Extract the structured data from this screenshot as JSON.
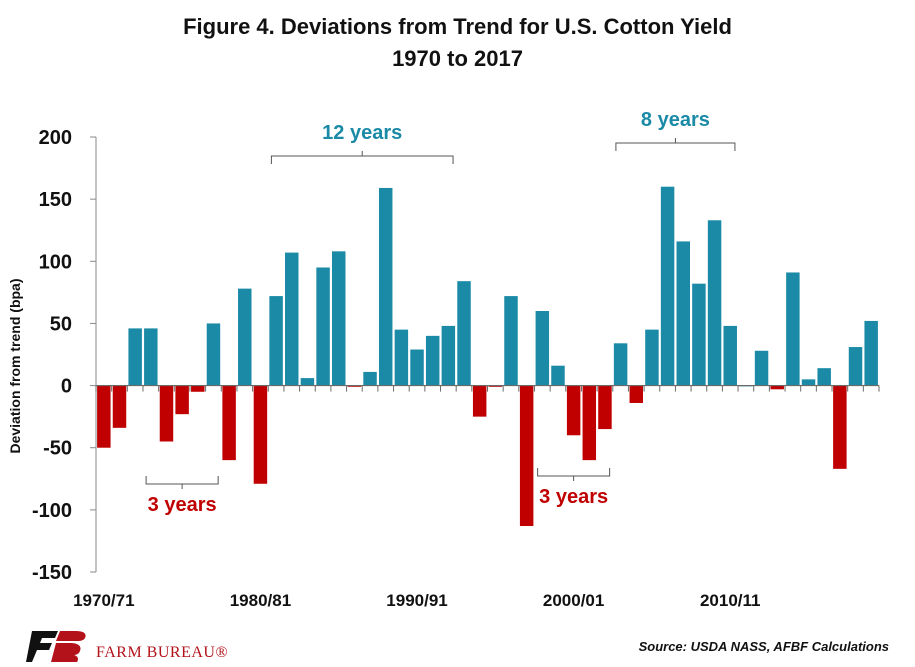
{
  "title_line1": "Figure 4. Deviations from Trend for U.S. Cotton Yield",
  "title_line2": "1970 to 2017",
  "ylabel": "Deviation from trend (bpa)",
  "source": "Source: USDA NASS, AFBF Calculations",
  "logo_text": "FARM BUREAU®",
  "colors": {
    "positive": "#1a8aa6",
    "negative": "#c00000",
    "annot_pos": "#1a8aa6",
    "annot_neg": "#c00000"
  },
  "chart_data": {
    "type": "bar",
    "title": "Figure 4. Deviations from Trend for U.S. Cotton Yield 1970 to 2017",
    "ylabel": "Deviation from trend (bpa)",
    "ylim": [
      -150,
      200
    ],
    "yticks": [
      -150,
      -100,
      -50,
      0,
      50,
      100,
      150,
      200
    ],
    "xtick_labels": [
      {
        "index": 0,
        "label": "1970/71"
      },
      {
        "index": 10,
        "label": "1980/81"
      },
      {
        "index": 20,
        "label": "1990/91"
      },
      {
        "index": 30,
        "label": "2000/01"
      },
      {
        "index": 40,
        "label": "2010/11"
      }
    ],
    "values": [
      -50,
      -34,
      46,
      46,
      -45,
      -23,
      -5,
      50,
      -60,
      78,
      -79,
      72,
      107,
      6,
      95,
      108,
      -1,
      11,
      159,
      45,
      29,
      40,
      48,
      84,
      -25,
      -1,
      72,
      -113,
      60,
      16,
      -40,
      -60,
      -35,
      34,
      -14,
      45,
      160,
      116,
      82,
      133,
      48,
      0,
      28,
      -3,
      91,
      5,
      14,
      -67,
      31,
      52
    ],
    "annotations": [
      {
        "text": "3 years",
        "start": 3,
        "end": 7,
        "type": "neg"
      },
      {
        "text": "12 years",
        "start": 11,
        "end": 22,
        "type": "pos"
      },
      {
        "text": "3 years",
        "start": 28,
        "end": 32,
        "type": "neg"
      },
      {
        "text": "8 years",
        "start": 33,
        "end": 40,
        "type": "pos"
      }
    ]
  }
}
